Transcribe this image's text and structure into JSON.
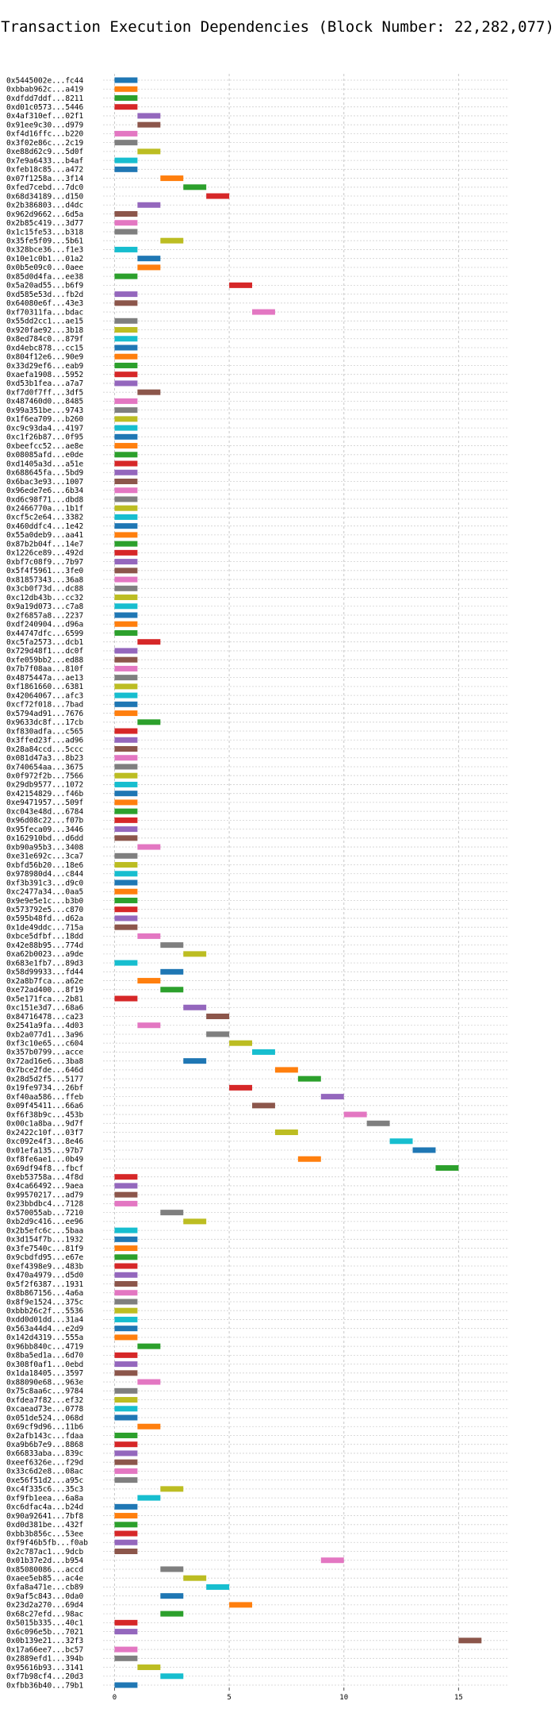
{
  "chart_data": {
    "type": "bar",
    "title": "Transaction Execution Dependencies (Block Number: 22,282,077)",
    "xlabel": "",
    "ylabel": "",
    "xlim": [
      -0.5,
      17.2
    ],
    "xticks": [
      0,
      5,
      10,
      15
    ],
    "grid": true,
    "bar_duration": 1,
    "palette": [
      "#1f77b4",
      "#ff7f0e",
      "#2ca02c",
      "#d62728",
      "#9467bd",
      "#8c564b",
      "#e377c2",
      "#7f7f7f",
      "#bcbd22",
      "#17becf"
    ],
    "transactions": [
      {
        "label": "0x5445002e...fc44",
        "start": 0
      },
      {
        "label": "0xbbab962c...a419",
        "start": 0
      },
      {
        "label": "0xdfdd7ddf...8211",
        "start": 0
      },
      {
        "label": "0xd01c0573...5446",
        "start": 0
      },
      {
        "label": "0x4af310ef...02f1",
        "start": 1
      },
      {
        "label": "0x91ee9c30...d979",
        "start": 1
      },
      {
        "label": "0xf4d16ffc...b220",
        "start": 0
      },
      {
        "label": "0x3f02e86c...2c19",
        "start": 0
      },
      {
        "label": "0xe88d62c9...5d0f",
        "start": 1
      },
      {
        "label": "0x7e9a6433...b4af",
        "start": 0
      },
      {
        "label": "0xfeb18c85...a472",
        "start": 0
      },
      {
        "label": "0x07f1258a...3f14",
        "start": 2
      },
      {
        "label": "0xfed7cebd...7dc0",
        "start": 3
      },
      {
        "label": "0x68d34189...d150",
        "start": 4
      },
      {
        "label": "0x2b386803...d4dc",
        "start": 1
      },
      {
        "label": "0x962d9662...6d5a",
        "start": 0
      },
      {
        "label": "0x2b85c419...3d77",
        "start": 0
      },
      {
        "label": "0x1c15fe53...b318",
        "start": 0
      },
      {
        "label": "0x35fe5f09...5b61",
        "start": 2
      },
      {
        "label": "0x328bce36...f1e3",
        "start": 0
      },
      {
        "label": "0x10e1c0b1...01a2",
        "start": 1
      },
      {
        "label": "0x0b5e09c0...0aee",
        "start": 1
      },
      {
        "label": "0x85d0d4fa...ee38",
        "start": 0
      },
      {
        "label": "0x5a20ad55...b6f9",
        "start": 5
      },
      {
        "label": "0xd585e53d...fb2d",
        "start": 0
      },
      {
        "label": "0x64080e6f...43e3",
        "start": 0
      },
      {
        "label": "0xf70311fa...bdac",
        "start": 6
      },
      {
        "label": "0x55dd2cc1...ae15",
        "start": 0
      },
      {
        "label": "0x920fae92...3b18",
        "start": 0
      },
      {
        "label": "0x8ed784c0...879f",
        "start": 0
      },
      {
        "label": "0xd4ebc878...cc15",
        "start": 0
      },
      {
        "label": "0x804f12e6...90e9",
        "start": 0
      },
      {
        "label": "0x33d29ef6...eab9",
        "start": 0
      },
      {
        "label": "0xaefa1908...5952",
        "start": 0
      },
      {
        "label": "0xd53b1fea...a7a7",
        "start": 0
      },
      {
        "label": "0xf7d0f7ff...3df5",
        "start": 1
      },
      {
        "label": "0x487460d0...8485",
        "start": 0
      },
      {
        "label": "0x99a351be...9743",
        "start": 0
      },
      {
        "label": "0x1f6ea709...b260",
        "start": 0
      },
      {
        "label": "0xc9c93da4...4197",
        "start": 0
      },
      {
        "label": "0xc1f26b87...0f95",
        "start": 0
      },
      {
        "label": "0xbeefcc52...ae8e",
        "start": 0
      },
      {
        "label": "0x08085afd...e0de",
        "start": 0
      },
      {
        "label": "0xd1405a3d...a51e",
        "start": 0
      },
      {
        "label": "0x688645fa...5bd9",
        "start": 0
      },
      {
        "label": "0x6bac3e93...1007",
        "start": 0
      },
      {
        "label": "0x96ede7e6...6b34",
        "start": 0
      },
      {
        "label": "0xd6c98f71...dbd8",
        "start": 0
      },
      {
        "label": "0x2466770a...1b1f",
        "start": 0
      },
      {
        "label": "0xcf5c2e64...3382",
        "start": 0
      },
      {
        "label": "0x460ddfc4...1e42",
        "start": 0
      },
      {
        "label": "0x55a0deb9...aa41",
        "start": 0
      },
      {
        "label": "0x87b2b04f...14e7",
        "start": 0
      },
      {
        "label": "0x1226ce89...492d",
        "start": 0
      },
      {
        "label": "0xbf7c08f9...7b97",
        "start": 0
      },
      {
        "label": "0x5f4f5961...3fe0",
        "start": 0
      },
      {
        "label": "0x81857343...36a8",
        "start": 0
      },
      {
        "label": "0x3cb0f73d...dc88",
        "start": 0
      },
      {
        "label": "0xc12db43b...cc32",
        "start": 0
      },
      {
        "label": "0x9a19d073...c7a8",
        "start": 0
      },
      {
        "label": "0x2f6857a8...2237",
        "start": 0
      },
      {
        "label": "0xdf240904...d96a",
        "start": 0
      },
      {
        "label": "0x44747dfc...6599",
        "start": 0
      },
      {
        "label": "0xc5fa2573...dcb1",
        "start": 1
      },
      {
        "label": "0x729d48f1...dc0f",
        "start": 0
      },
      {
        "label": "0xfe059bb2...ed88",
        "start": 0
      },
      {
        "label": "0x7b7f08aa...810f",
        "start": 0
      },
      {
        "label": "0x4875447a...ae13",
        "start": 0
      },
      {
        "label": "0xf1861660...6381",
        "start": 0
      },
      {
        "label": "0x42064067...afc3",
        "start": 0
      },
      {
        "label": "0xcf72f018...7bad",
        "start": 0
      },
      {
        "label": "0x5794ad91...7676",
        "start": 0
      },
      {
        "label": "0x9633dc8f...17cb",
        "start": 1
      },
      {
        "label": "0xf830adfa...c565",
        "start": 0
      },
      {
        "label": "0x3ffed23f...ad96",
        "start": 0
      },
      {
        "label": "0x28a84ccd...5ccc",
        "start": 0
      },
      {
        "label": "0x081d47a3...8b23",
        "start": 0
      },
      {
        "label": "0x740654aa...3675",
        "start": 0
      },
      {
        "label": "0x0f972f2b...7566",
        "start": 0
      },
      {
        "label": "0x29db9577...1072",
        "start": 0
      },
      {
        "label": "0x42154829...f46b",
        "start": 0
      },
      {
        "label": "0xe9471957...509f",
        "start": 0
      },
      {
        "label": "0xc043e48d...6784",
        "start": 0
      },
      {
        "label": "0x96d08c22...f07b",
        "start": 0
      },
      {
        "label": "0x95feca09...3446",
        "start": 0
      },
      {
        "label": "0x162910bd...d6dd",
        "start": 0
      },
      {
        "label": "0xb90a95b3...3408",
        "start": 1
      },
      {
        "label": "0xe31e692c...3ca7",
        "start": 0
      },
      {
        "label": "0xbfd56b20...18e6",
        "start": 0
      },
      {
        "label": "0x978980d4...c844",
        "start": 0
      },
      {
        "label": "0xf3b391c3...d9c0",
        "start": 0
      },
      {
        "label": "0xc2477a34...0aa5",
        "start": 0
      },
      {
        "label": "0x9e9e5e1c...b3b0",
        "start": 0
      },
      {
        "label": "0x573792e5...c870",
        "start": 0
      },
      {
        "label": "0x595b48fd...d62a",
        "start": 0
      },
      {
        "label": "0x1de49ddc...715a",
        "start": 0
      },
      {
        "label": "0xbce5dfbf...18dd",
        "start": 1
      },
      {
        "label": "0x42e88b95...774d",
        "start": 2
      },
      {
        "label": "0xa62b0023...a9de",
        "start": 3
      },
      {
        "label": "0x683e1fb7...89d3",
        "start": 0
      },
      {
        "label": "0x58d99933...fd44",
        "start": 2
      },
      {
        "label": "0x2a8b7fca...a62e",
        "start": 1
      },
      {
        "label": "0xe72ad400...8f19",
        "start": 2
      },
      {
        "label": "0x5e171fca...2b81",
        "start": 0
      },
      {
        "label": "0xc151e3d7...68a6",
        "start": 3
      },
      {
        "label": "0x84716478...ca23",
        "start": 4
      },
      {
        "label": "0x2541a9fa...4d03",
        "start": 1
      },
      {
        "label": "0xb2a077d1...3a96",
        "start": 4
      },
      {
        "label": "0xf3c10e65...c604",
        "start": 5
      },
      {
        "label": "0x357b0799...acce",
        "start": 6
      },
      {
        "label": "0x72ad16e6...3ba8",
        "start": 3
      },
      {
        "label": "0x7bce2fde...646d",
        "start": 7
      },
      {
        "label": "0x28d5d2f5...5177",
        "start": 8
      },
      {
        "label": "0x19fe9734...26bf",
        "start": 5
      },
      {
        "label": "0xf40aa586...ffeb",
        "start": 9
      },
      {
        "label": "0x09f45411...66a6",
        "start": 6
      },
      {
        "label": "0xf6f38b9c...453b",
        "start": 10
      },
      {
        "label": "0x00c1a8ba...9d7f",
        "start": 11
      },
      {
        "label": "0x2422c10f...03f7",
        "start": 7
      },
      {
        "label": "0xc092e4f3...8e46",
        "start": 12
      },
      {
        "label": "0x01efa135...97b7",
        "start": 13
      },
      {
        "label": "0xf8fe6ae1...0b49",
        "start": 8
      },
      {
        "label": "0x69df94f8...fbcf",
        "start": 14
      },
      {
        "label": "0xeb53758a...4f8d",
        "start": 0
      },
      {
        "label": "0x4ca66492...9aea",
        "start": 0
      },
      {
        "label": "0x99570217...ad79",
        "start": 0
      },
      {
        "label": "0x23bbdbc4...7128",
        "start": 0
      },
      {
        "label": "0x570055ab...7210",
        "start": 2
      },
      {
        "label": "0xb2d9c416...ee96",
        "start": 3
      },
      {
        "label": "0x2b5efc6c...5baa",
        "start": 0
      },
      {
        "label": "0x3d154f7b...1932",
        "start": 0
      },
      {
        "label": "0x3fe7540c...81f9",
        "start": 0
      },
      {
        "label": "0x9cbdfd95...e67e",
        "start": 0
      },
      {
        "label": "0xef4398e9...483b",
        "start": 0
      },
      {
        "label": "0x470a4979...d5d0",
        "start": 0
      },
      {
        "label": "0x5f2f6387...1931",
        "start": 0
      },
      {
        "label": "0x8b867156...4a6a",
        "start": 0
      },
      {
        "label": "0x8f9e1524...375c",
        "start": 0
      },
      {
        "label": "0xbbb26c2f...5536",
        "start": 0
      },
      {
        "label": "0xdd0d01dd...31a4",
        "start": 0
      },
      {
        "label": "0x563a44d4...e2d9",
        "start": 0
      },
      {
        "label": "0x142d4319...555a",
        "start": 0
      },
      {
        "label": "0x96bb840c...4719",
        "start": 1
      },
      {
        "label": "0x8ba5ed1a...6d70",
        "start": 0
      },
      {
        "label": "0x308f0af1...0ebd",
        "start": 0
      },
      {
        "label": "0x1da18405...3597",
        "start": 0
      },
      {
        "label": "0x88090e68...963e",
        "start": 1
      },
      {
        "label": "0x75c8aa6c...9784",
        "start": 0
      },
      {
        "label": "0xfdea7f82...ef32",
        "start": 0
      },
      {
        "label": "0xcaead73e...0778",
        "start": 0
      },
      {
        "label": "0x051de524...068d",
        "start": 0
      },
      {
        "label": "0x69cf9d96...11b6",
        "start": 1
      },
      {
        "label": "0x2afb143c...fdaa",
        "start": 0
      },
      {
        "label": "0xa9b6b7e9...8868",
        "start": 0
      },
      {
        "label": "0x66833aba...839c",
        "start": 0
      },
      {
        "label": "0xeef6326e...f29d",
        "start": 0
      },
      {
        "label": "0x33c6d2e8...08ac",
        "start": 0
      },
      {
        "label": "0xe56f51d2...a95c",
        "start": 0
      },
      {
        "label": "0xc4f335c6...35c3",
        "start": 2
      },
      {
        "label": "0xf9fb1eea...6a8a",
        "start": 1
      },
      {
        "label": "0xc6dfac4a...b24d",
        "start": 0
      },
      {
        "label": "0x90a92641...7bf8",
        "start": 0
      },
      {
        "label": "0xd0d381be...432f",
        "start": 0
      },
      {
        "label": "0xbb3b856c...53ee",
        "start": 0
      },
      {
        "label": "0xf9f46b5fb...f0ab",
        "start": 0
      },
      {
        "label": "0x2c787ac1...9dcb",
        "start": 0
      },
      {
        "label": "0x01b37e2d...b954",
        "start": 9
      },
      {
        "label": "0x85080086...accd",
        "start": 2
      },
      {
        "label": "0xaee5eb85...ac4e",
        "start": 3
      },
      {
        "label": "0xfa8a471e...cb89",
        "start": 4
      },
      {
        "label": "0x9af5c843...0da0",
        "start": 2
      },
      {
        "label": "0x23d2a270...69d4",
        "start": 5
      },
      {
        "label": "0x68c27efd...98ac",
        "start": 2
      },
      {
        "label": "0x5015b335...40c1",
        "start": 0
      },
      {
        "label": "0x6c096e5b...7021",
        "start": 0
      },
      {
        "label": "0x0b139e21...32f3",
        "start": 15
      },
      {
        "label": "0x17a66ee7...bc57",
        "start": 0
      },
      {
        "label": "0x2889efd1...394b",
        "start": 0
      },
      {
        "label": "0x95616b93...3141",
        "start": 1
      },
      {
        "label": "0xf7b98cf4...20d3",
        "start": 2
      },
      {
        "label": "0xfbb36b40...79b1",
        "start": 0
      }
    ]
  }
}
